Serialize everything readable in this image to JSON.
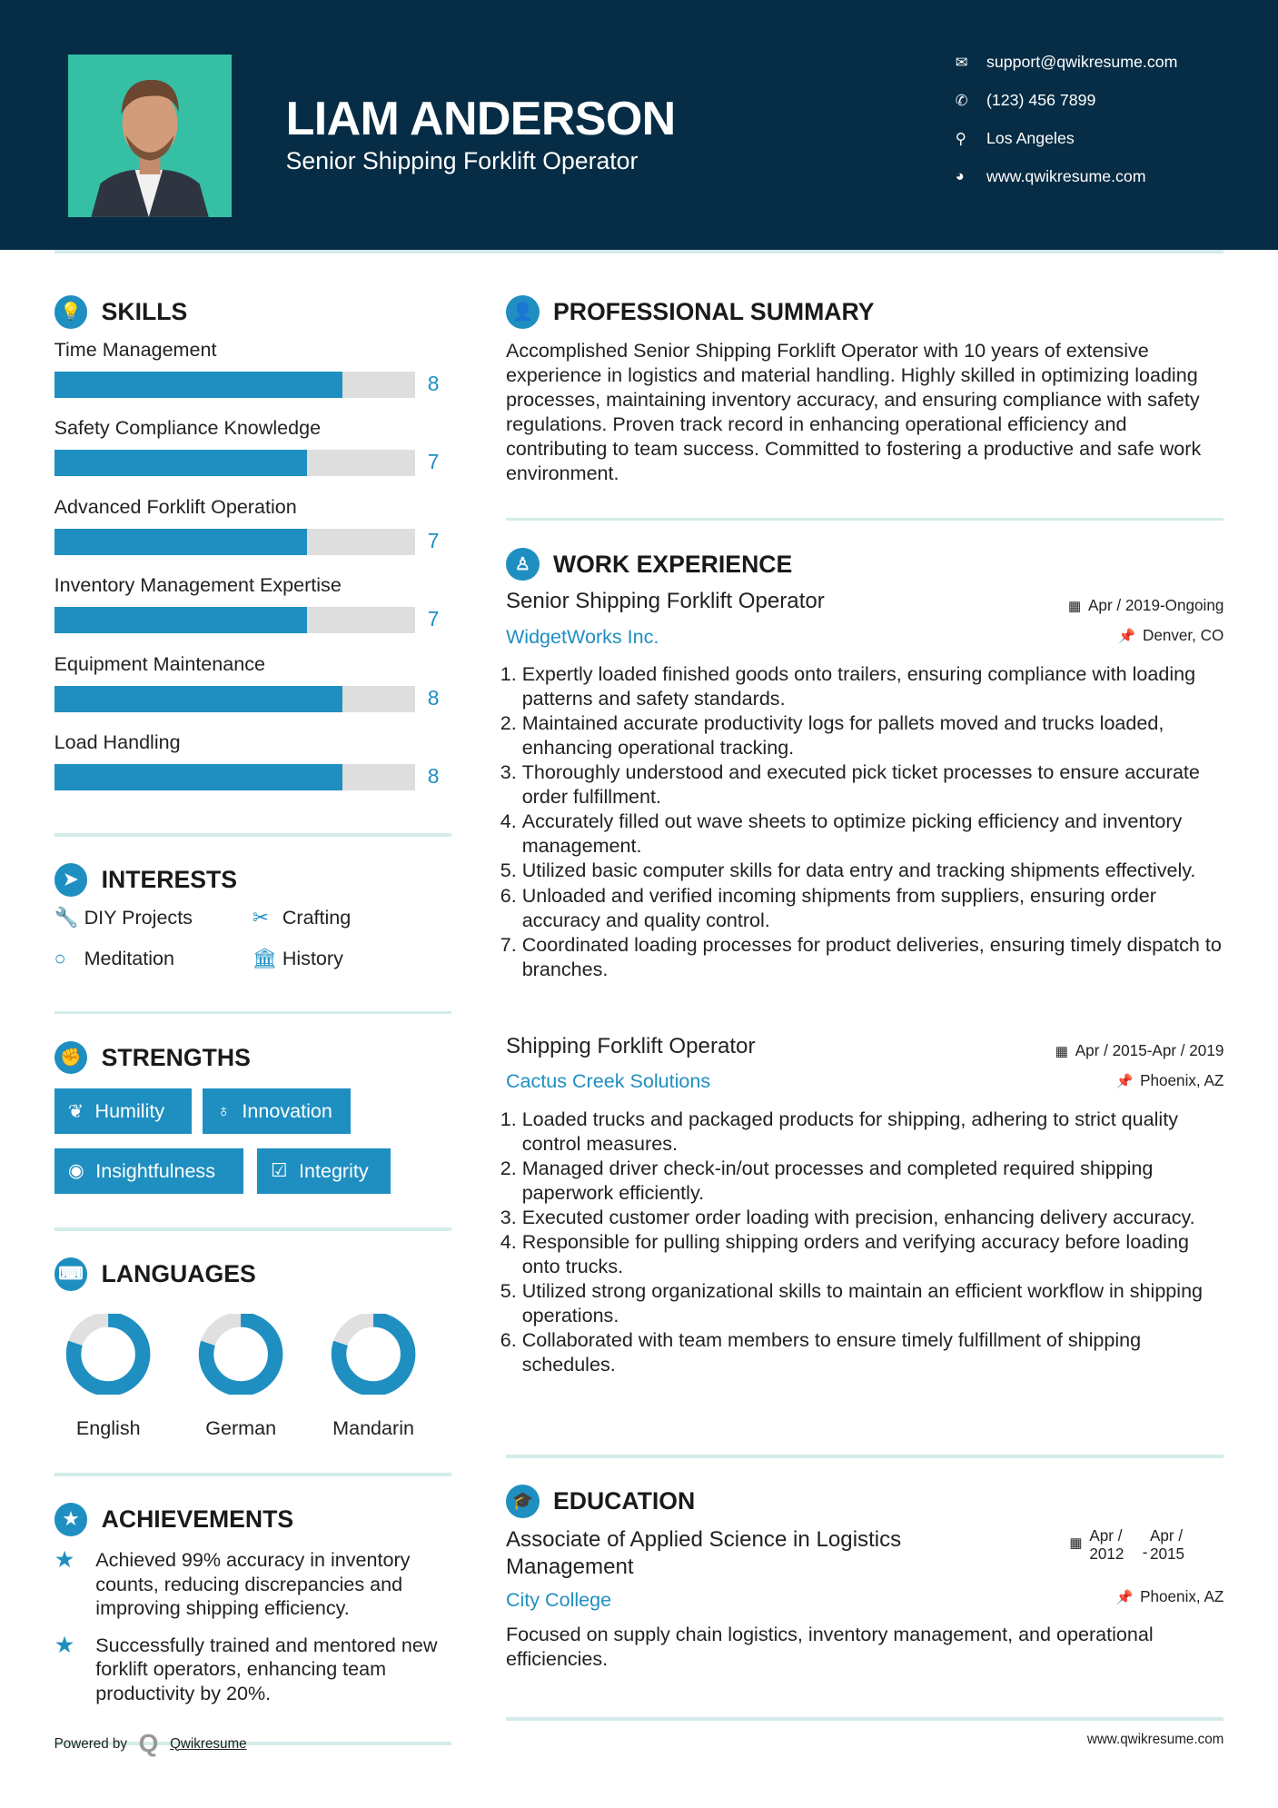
{
  "header": {
    "name": "LIAM ANDERSON",
    "title": "Senior Shipping Forklift Operator",
    "contacts": [
      {
        "icon": "envelope-icon",
        "text": "support@qwikresume.com"
      },
      {
        "icon": "phone-icon",
        "text": "(123) 456 7899"
      },
      {
        "icon": "map-marker-icon",
        "text": "Los Angeles"
      },
      {
        "icon": "globe-icon",
        "text": "www.qwikresume.com"
      }
    ]
  },
  "colors": {
    "header_bg": "#062d45",
    "accent": "#1f8fc1",
    "photo_bg": "#35bfa5"
  },
  "skills": {
    "title": "SKILLS",
    "items": [
      {
        "label": "Time Management",
        "value": 8
      },
      {
        "label": "Safety Compliance Knowledge",
        "value": 7
      },
      {
        "label": "Advanced Forklift Operation",
        "value": 7
      },
      {
        "label": "Inventory Management Expertise",
        "value": 7
      },
      {
        "label": "Equipment Maintenance",
        "value": 8
      },
      {
        "label": "Load Handling",
        "value": 8
      }
    ]
  },
  "interests": {
    "title": "INTERESTS",
    "items": [
      {
        "label": "DIY Projects",
        "icon": "wrench-icon"
      },
      {
        "label": "Crafting",
        "icon": "scissors-icon"
      },
      {
        "label": "Meditation",
        "icon": "circle-icon"
      },
      {
        "label": "History",
        "icon": "bank-icon"
      }
    ]
  },
  "strengths": {
    "title": "STRENGTHS",
    "items": [
      {
        "label": "Humility",
        "icon": "leaf-icon"
      },
      {
        "label": "Innovation",
        "icon": "lightbulb-icon"
      },
      {
        "label": "Insightfulness",
        "icon": "eye-icon"
      },
      {
        "label": "Integrity",
        "icon": "check-square-icon"
      }
    ]
  },
  "languages": {
    "title": "LANGUAGES",
    "items": [
      {
        "label": "English",
        "level": 0.8
      },
      {
        "label": "German",
        "level": 0.8
      },
      {
        "label": "Mandarin",
        "level": 0.8
      }
    ]
  },
  "achievements": {
    "title": "ACHIEVEMENTS",
    "items": [
      "Achieved 99% accuracy in inventory counts, reducing discrepancies and improving shipping efficiency.",
      "Successfully trained and mentored new forklift operators, enhancing team productivity by 20%."
    ]
  },
  "summary": {
    "title": "PROFESSIONAL SUMMARY",
    "text": "Accomplished Senior Shipping Forklift Operator with 10 years of extensive experience in logistics and material handling. Highly skilled in optimizing loading processes, maintaining inventory accuracy, and ensuring compliance with safety regulations. Proven track record in enhancing operational efficiency and contributing to team success. Committed to fostering a productive and safe work environment."
  },
  "experience": {
    "title": "WORK EXPERIENCE",
    "jobs": [
      {
        "title": "Senior Shipping Forklift Operator",
        "company": "WidgetWorks Inc.",
        "dates": "Apr / 2019-Ongoing",
        "location": "Denver, CO",
        "bullets": [
          "Expertly loaded finished goods onto trailers, ensuring compliance with loading patterns and safety standards.",
          "Maintained accurate productivity logs for pallets moved and trucks loaded, enhancing operational tracking.",
          "Thoroughly understood and executed pick ticket processes to ensure accurate order fulfillment.",
          "Accurately filled out wave sheets to optimize picking efficiency and inventory management.",
          "Utilized basic computer skills for data entry and tracking shipments effectively.",
          "Unloaded and verified incoming shipments from suppliers, ensuring order accuracy and quality control.",
          "Coordinated loading processes for product deliveries, ensuring timely dispatch to branches."
        ]
      },
      {
        "title": "Shipping Forklift Operator",
        "company": "Cactus Creek Solutions",
        "dates": "Apr / 2015-Apr / 2019",
        "location": "Phoenix, AZ",
        "bullets": [
          "Loaded trucks and packaged products for shipping, adhering to strict quality control measures.",
          "Managed driver check-in/out processes and completed required shipping paperwork efficiently.",
          "Executed customer order loading with precision, enhancing delivery accuracy.",
          "Responsible for pulling shipping orders and verifying accuracy before loading onto trucks.",
          "Utilized strong organizational skills to maintain an efficient workflow in shipping operations.",
          "Collaborated with team members to ensure timely fulfillment of shipping schedules."
        ]
      }
    ]
  },
  "education": {
    "title": "EDUCATION",
    "degree": "Associate of Applied Science in Logistics Management",
    "school": "City College",
    "start": "Apr / 2012",
    "end": "Apr / 2015",
    "location": "Phoenix, AZ",
    "description": "Focused on supply chain logistics, inventory management, and operational efficiencies."
  },
  "footer": {
    "powered_by": "Powered by",
    "brand": "Qwikresume",
    "url": "www.qwikresume.com"
  }
}
